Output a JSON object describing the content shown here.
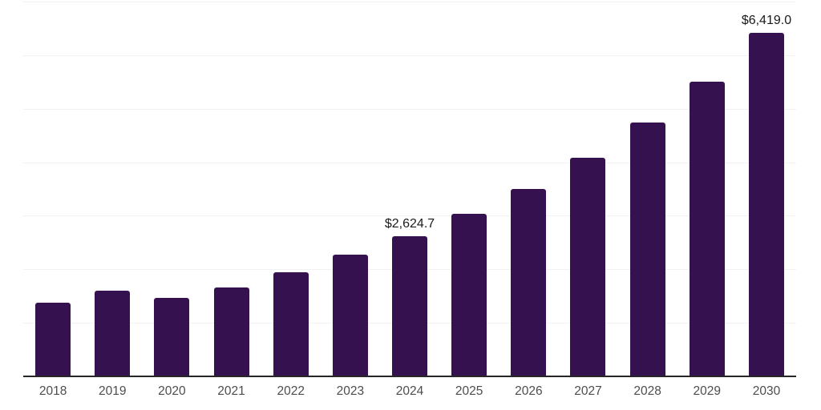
{
  "chart_data": {
    "type": "bar",
    "title": "",
    "xlabel": "",
    "ylabel": "",
    "categories": [
      "2018",
      "2019",
      "2020",
      "2021",
      "2022",
      "2023",
      "2024",
      "2025",
      "2026",
      "2027",
      "2028",
      "2029",
      "2030"
    ],
    "values": [
      1375,
      1600,
      1465,
      1660,
      1945,
      2270,
      2624.7,
      3035,
      3500,
      4080,
      4740,
      5500,
      6419.0
    ],
    "data_labels": [
      "",
      "",
      "",
      "",
      "",
      "",
      "$2,624.7",
      "",
      "",
      "",
      "",
      "",
      "$6,419.0"
    ],
    "ylim": [
      0,
      7000
    ],
    "ytick_step": 1000,
    "grid": "horizontal",
    "y_axis_labels_visible": false,
    "legend": "none"
  },
  "colors": {
    "bar": "#351150",
    "gridline": "#f2f2f2",
    "axis_line": "#262626",
    "tick_label": "#4d4d4d",
    "value_label": "#1a1a1a",
    "background": "#ffffff"
  }
}
